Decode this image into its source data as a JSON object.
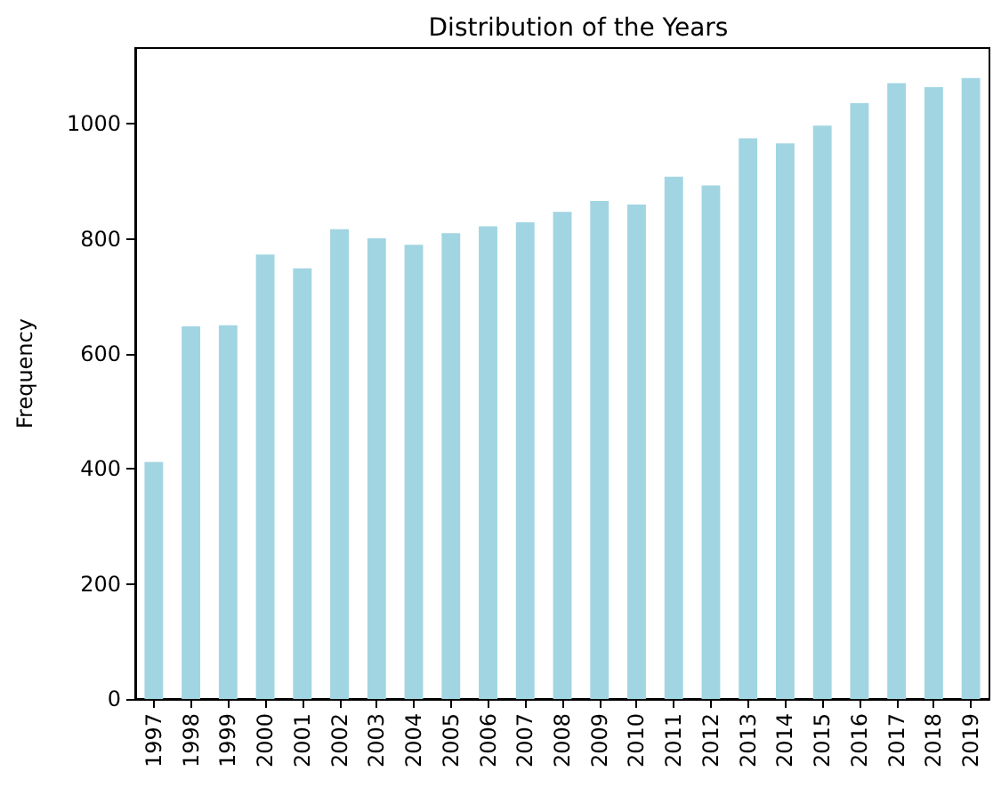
{
  "chart_data": {
    "type": "bar",
    "title": "Distribution of the Years",
    "ylabel": "Frequency",
    "categories": [
      "1997",
      "1998",
      "1999",
      "2000",
      "2001",
      "2002",
      "2003",
      "2004",
      "2005",
      "2006",
      "2007",
      "2008",
      "2009",
      "2010",
      "2011",
      "2012",
      "2013",
      "2014",
      "2015",
      "2016",
      "2017",
      "2018",
      "2019"
    ],
    "values": [
      412,
      648,
      650,
      773,
      749,
      817,
      801,
      790,
      810,
      822,
      829,
      847,
      866,
      860,
      908,
      893,
      975,
      966,
      997,
      1036,
      1071,
      1064,
      1080
    ],
    "color": "#a1d5e2",
    "ylim": [
      0,
      1132
    ],
    "yticks": [
      0,
      200,
      400,
      600,
      800,
      1000
    ],
    "grid": false
  }
}
